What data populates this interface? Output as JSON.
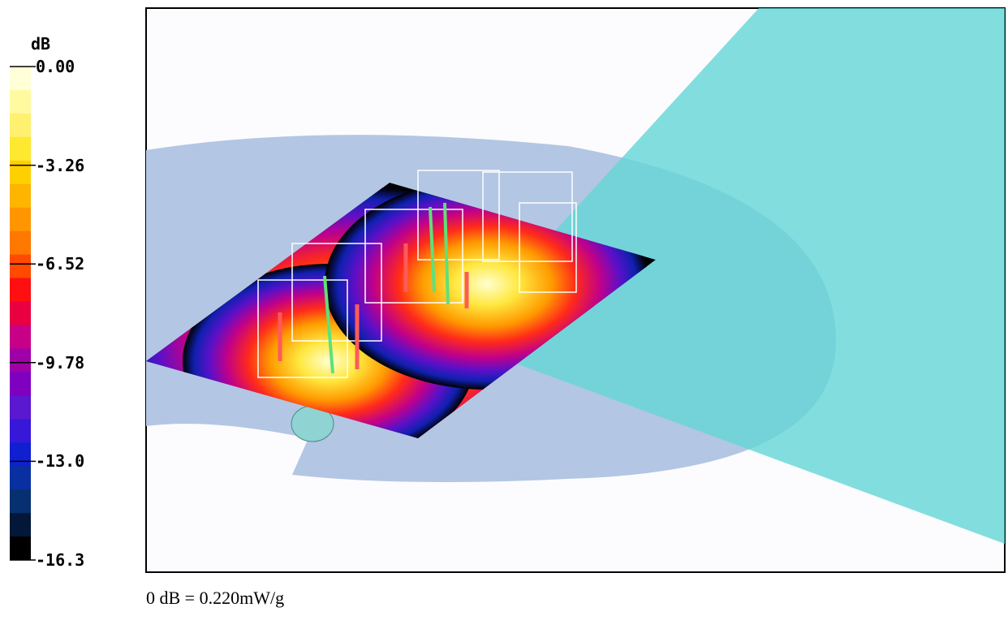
{
  "colorbar": {
    "title": "dB",
    "ticks": [
      "0.00",
      "-3.26",
      "-6.52",
      "-9.78",
      "-13.0",
      "-16.3"
    ]
  },
  "caption": "0 dB = 0.220mW/g"
}
